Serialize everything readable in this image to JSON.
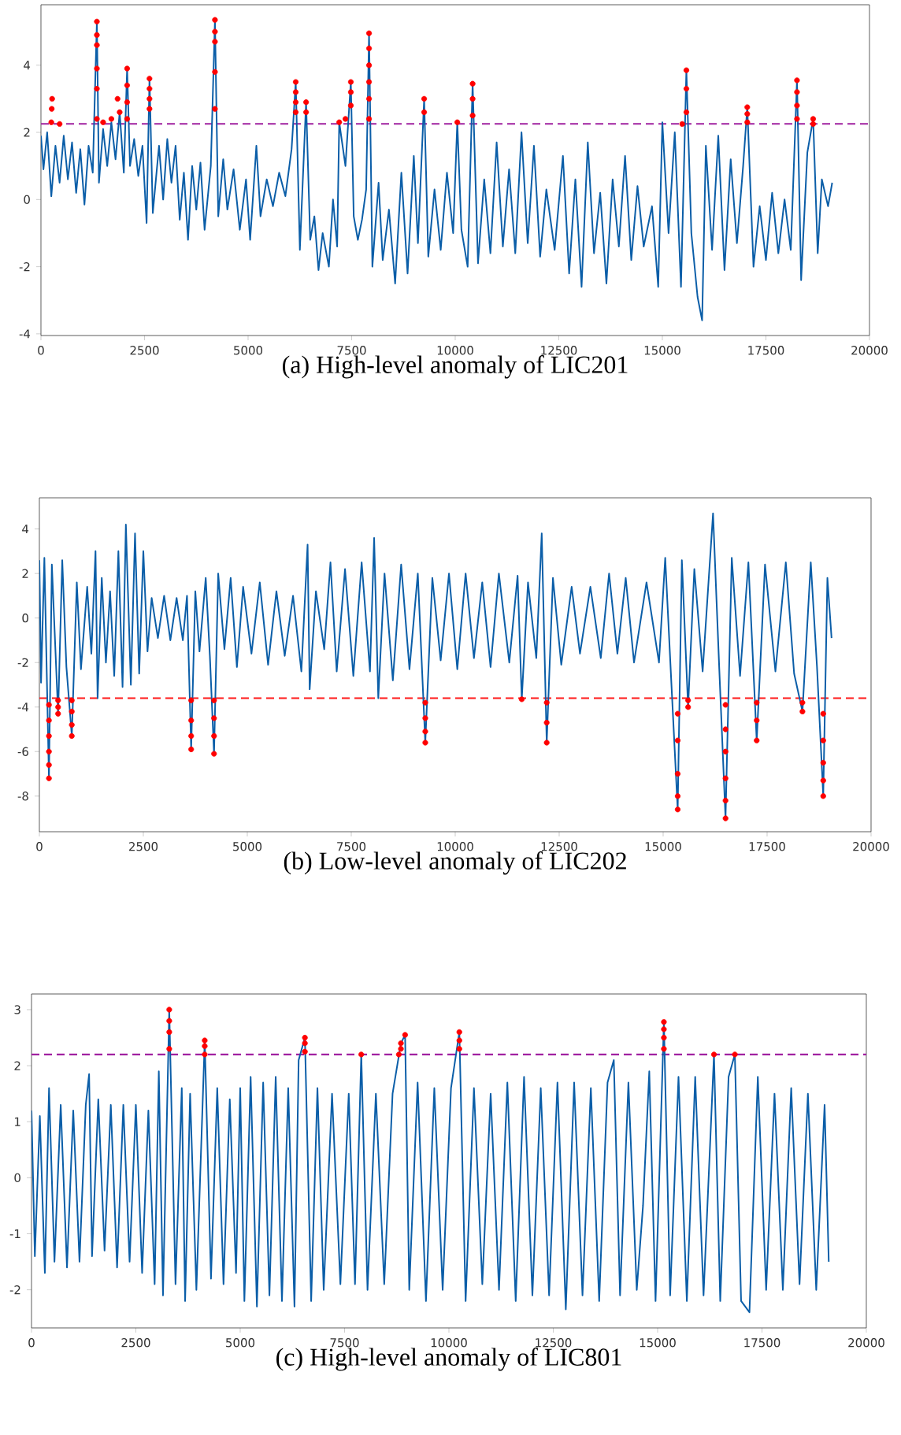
{
  "chart_data": [
    {
      "type": "line",
      "title": "(a)  High-level anomaly of LIC201",
      "xlim": [
        0,
        20000
      ],
      "ylim": [
        -4.05,
        5.8
      ],
      "xticks": [
        0,
        2500,
        5000,
        7500,
        10000,
        12500,
        15000,
        17500,
        20000
      ],
      "yticks": [
        -4,
        -2,
        0,
        2,
        4
      ],
      "series": [
        {
          "color": "#0b5ea8",
          "marker": "none",
          "x": [
            0,
            60,
            150,
            250,
            350,
            450,
            550,
            650,
            750,
            850,
            950,
            1050,
            1150,
            1250,
            1350,
            1400,
            1500,
            1600,
            1700,
            1800,
            1900,
            2000,
            2080,
            2150,
            2250,
            2350,
            2450,
            2550,
            2620,
            2700,
            2850,
            2950,
            3050,
            3150,
            3250,
            3350,
            3450,
            3550,
            3650,
            3750,
            3850,
            3950,
            4100,
            4200,
            4280,
            4400,
            4500,
            4650,
            4800,
            4950,
            5050,
            5200,
            5300,
            5450,
            5600,
            5750,
            5900,
            6050,
            6150,
            6250,
            6400,
            6500,
            6600,
            6700,
            6800,
            6950,
            7050,
            7150,
            7200,
            7350,
            7480,
            7550,
            7650,
            7750,
            7850,
            7920,
            8000,
            8150,
            8250,
            8400,
            8550,
            8700,
            8850,
            9000,
            9100,
            9250,
            9350,
            9500,
            9650,
            9800,
            9950,
            10050,
            10150,
            10300,
            10420,
            10550,
            10700,
            10850,
            11000,
            11150,
            11300,
            11450,
            11600,
            11750,
            11900,
            12050,
            12200,
            12400,
            12600,
            12750,
            12900,
            13050,
            13200,
            13350,
            13500,
            13650,
            13800,
            13950,
            14100,
            14250,
            14400,
            14550,
            14750,
            14900,
            15000,
            15150,
            15300,
            15450,
            15580,
            15700,
            15850,
            15960,
            16050,
            16200,
            16350,
            16500,
            16650,
            16800,
            16950,
            17050,
            17200,
            17350,
            17500,
            17650,
            17800,
            17950,
            18100,
            18250,
            18350,
            18500,
            18640,
            18750,
            18850,
            19000,
            19100
          ],
          "values": [
            1.9,
            0.9,
            2.0,
            0.1,
            1.6,
            0.5,
            1.9,
            0.6,
            1.7,
            0.2,
            1.5,
            -0.15,
            1.6,
            0.8,
            5.3,
            0.5,
            2.1,
            1.0,
            2.3,
            1.2,
            2.6,
            0.8,
            3.9,
            1.0,
            1.8,
            0.7,
            1.6,
            -0.7,
            3.6,
            -0.4,
            1.6,
            0.0,
            1.8,
            0.5,
            1.6,
            -0.6,
            0.8,
            -1.2,
            1.0,
            -0.3,
            1.1,
            -0.9,
            1.0,
            5.35,
            -0.5,
            1.2,
            -0.3,
            0.9,
            -0.9,
            0.6,
            -1.2,
            1.6,
            -0.5,
            0.6,
            -0.2,
            0.8,
            0.1,
            1.5,
            3.5,
            -1.5,
            2.9,
            -1.2,
            -0.5,
            -2.1,
            -1.0,
            -2.0,
            0.0,
            -1.4,
            2.3,
            1.0,
            3.5,
            -0.5,
            -1.2,
            -0.6,
            0.3,
            4.95,
            -2.0,
            0.5,
            -1.8,
            -0.3,
            -2.5,
            0.8,
            -2.2,
            1.3,
            -1.3,
            3.0,
            -1.7,
            0.3,
            -1.5,
            0.8,
            -1.0,
            2.3,
            -0.9,
            -2.0,
            3.45,
            -1.9,
            0.6,
            -1.6,
            1.7,
            -1.4,
            0.9,
            -1.6,
            2.0,
            -1.3,
            1.6,
            -1.7,
            0.3,
            -1.5,
            1.3,
            -2.2,
            0.6,
            -2.6,
            1.7,
            -1.6,
            0.2,
            -2.5,
            0.6,
            -1.4,
            1.3,
            -1.8,
            0.4,
            -1.4,
            -0.2,
            -2.6,
            2.3,
            -1.0,
            2.0,
            -2.6,
            3.85,
            -1.0,
            -2.9,
            -3.6,
            1.6,
            -1.5,
            1.9,
            -2.1,
            1.2,
            -1.3,
            1.0,
            2.75,
            -2.0,
            -0.2,
            -1.8,
            0.2,
            -1.6,
            0.0,
            -1.5,
            3.55,
            -2.4,
            1.4,
            2.4,
            -1.6,
            0.6,
            -0.2,
            0.5
          ]
        },
        {
          "type": "scatter",
          "color": "#ff0000",
          "marker": "circle",
          "x": [
            250,
            260,
            270,
            450,
            1350,
            1350,
            1350,
            1350,
            1350,
            1350,
            1500,
            1700,
            1900,
            1850,
            2080,
            2080,
            2080,
            2080,
            2620,
            2620,
            2620,
            2620,
            4200,
            4200,
            4200,
            4200,
            4200,
            6150,
            6150,
            6150,
            6150,
            6400,
            6400,
            7200,
            7350,
            7480,
            7480,
            7480,
            7920,
            7920,
            7920,
            7920,
            7920,
            7920,
            9250,
            9250,
            10050,
            10420,
            10420,
            10420,
            15480,
            15580,
            15580,
            15580,
            17050,
            17050,
            17050,
            18250,
            18250,
            18250,
            18250,
            18640,
            18640
          ],
          "values": [
            2.3,
            2.7,
            3.0,
            2.25,
            2.4,
            3.3,
            3.9,
            4.6,
            4.9,
            5.3,
            2.3,
            2.4,
            2.6,
            3.0,
            2.4,
            2.9,
            3.4,
            3.9,
            2.7,
            3.0,
            3.3,
            3.6,
            2.7,
            3.8,
            4.7,
            5.0,
            5.35,
            2.6,
            2.9,
            3.2,
            3.5,
            2.6,
            2.9,
            2.3,
            2.4,
            2.8,
            3.2,
            3.5,
            2.4,
            3.0,
            3.5,
            4.0,
            4.5,
            4.95,
            2.6,
            3.0,
            2.3,
            2.5,
            3.0,
            3.45,
            2.25,
            2.6,
            3.3,
            3.85,
            2.3,
            2.55,
            2.75,
            2.4,
            2.8,
            3.2,
            3.55,
            2.25,
            2.4
          ]
        }
      ],
      "ref_lines": [
        {
          "axis": "y",
          "value": 2.25,
          "color": "#a020a0",
          "line_style": "dashed"
        }
      ]
    },
    {
      "type": "line",
      "title": "(b)  Low-level anomaly of LIC202",
      "xlim": [
        0,
        20000
      ],
      "ylim": [
        -9.6,
        5.4
      ],
      "xticks": [
        0,
        2500,
        5000,
        7500,
        10000,
        12500,
        15000,
        17500,
        20000
      ],
      "yticks": [
        -8,
        -6,
        -4,
        -2,
        0,
        2,
        4
      ],
      "series": [
        {
          "color": "#0b5ea8",
          "marker": "none",
          "x": [
            0,
            40,
            120,
            230,
            300,
            450,
            550,
            650,
            780,
            900,
            1000,
            1150,
            1250,
            1350,
            1400,
            1500,
            1600,
            1700,
            1800,
            1900,
            2000,
            2080,
            2200,
            2300,
            2400,
            2500,
            2600,
            2700,
            2850,
            3000,
            3150,
            3300,
            3450,
            3550,
            3650,
            3750,
            3850,
            4000,
            4100,
            4200,
            4300,
            4450,
            4600,
            4750,
            4900,
            5100,
            5300,
            5500,
            5700,
            5900,
            6100,
            6300,
            6450,
            6500,
            6650,
            6850,
            7000,
            7150,
            7350,
            7550,
            7750,
            7950,
            8050,
            8150,
            8300,
            8500,
            8700,
            8900,
            9100,
            9280,
            9450,
            9650,
            9850,
            10050,
            10250,
            10450,
            10650,
            10850,
            11050,
            11300,
            11500,
            11600,
            11750,
            11950,
            12080,
            12200,
            12350,
            12550,
            12800,
            13000,
            13250,
            13500,
            13700,
            13900,
            14100,
            14300,
            14600,
            14900,
            15050,
            15200,
            15350,
            15450,
            15600,
            15750,
            15950,
            16200,
            16350,
            16500,
            16650,
            16850,
            17050,
            17250,
            17450,
            17700,
            17950,
            18150,
            18350,
            18550,
            18700,
            18850,
            18950,
            19050
          ],
          "values": [
            2.6,
            -2.9,
            2.7,
            -7.2,
            2.4,
            -4.3,
            2.6,
            -2.2,
            -5.3,
            1.6,
            -2.3,
            1.4,
            -1.6,
            3.0,
            -3.6,
            1.8,
            -2.0,
            1.2,
            -2.6,
            3.0,
            -3.1,
            4.2,
            -3.0,
            3.8,
            -2.5,
            3.0,
            -1.5,
            0.9,
            -0.9,
            1.0,
            -1.0,
            0.9,
            -1.0,
            1.0,
            -5.9,
            1.2,
            -1.5,
            1.8,
            -1.7,
            -6.1,
            2.0,
            -1.4,
            1.8,
            -2.2,
            1.4,
            -1.6,
            1.6,
            -2.1,
            1.2,
            -1.7,
            1.0,
            -2.4,
            3.3,
            -3.2,
            1.2,
            -1.4,
            2.5,
            -2.4,
            2.2,
            -2.6,
            2.5,
            -2.4,
            3.6,
            -3.6,
            2.0,
            -2.8,
            2.4,
            -2.3,
            2.0,
            -5.6,
            1.8,
            -1.9,
            2.0,
            -2.3,
            2.0,
            -1.8,
            1.6,
            -2.2,
            2.0,
            -2.0,
            1.9,
            -3.65,
            1.6,
            -1.8,
            3.8,
            -5.6,
            1.8,
            -2.1,
            1.4,
            -1.6,
            1.4,
            -1.8,
            2.0,
            -1.6,
            1.8,
            -2.0,
            1.6,
            -2.0,
            2.7,
            -3.0,
            -8.6,
            2.6,
            -4.0,
            2.2,
            -2.4,
            4.7,
            -2.3,
            -9.0,
            2.7,
            -2.6,
            2.5,
            -5.5,
            2.4,
            -2.4,
            2.5,
            -2.5,
            -4.2,
            2.5,
            -2.2,
            -8.0,
            1.8,
            -0.9
          ]
        },
        {
          "type": "scatter",
          "color": "#ff0000",
          "marker": "circle",
          "x": [
            230,
            230,
            230,
            230,
            230,
            230,
            450,
            450,
            450,
            780,
            780,
            780,
            780,
            3650,
            3650,
            3650,
            3650,
            4200,
            4200,
            4200,
            4200,
            9280,
            9280,
            9280,
            9280,
            11600,
            12200,
            12200,
            12200,
            15350,
            15350,
            15350,
            15350,
            15350,
            15600,
            15600,
            16500,
            16500,
            16500,
            16500,
            16500,
            16500,
            17250,
            17250,
            17250,
            18350,
            18350,
            18850,
            18850,
            18850,
            18850,
            18850
          ],
          "values": [
            -3.9,
            -4.6,
            -5.3,
            -6.0,
            -6.6,
            -7.2,
            -3.7,
            -4.0,
            -4.3,
            -3.7,
            -4.2,
            -4.8,
            -5.3,
            -3.7,
            -4.6,
            -5.3,
            -5.9,
            -3.7,
            -4.5,
            -5.3,
            -6.1,
            -3.8,
            -4.5,
            -5.1,
            -5.6,
            -3.65,
            -3.8,
            -4.7,
            -5.6,
            -4.3,
            -5.5,
            -7.0,
            -8.0,
            -8.6,
            -3.7,
            -4.0,
            -3.9,
            -5.0,
            -6.0,
            -7.2,
            -8.2,
            -9.0,
            -3.8,
            -4.6,
            -5.5,
            -3.8,
            -4.2,
            -4.3,
            -5.5,
            -6.5,
            -7.3,
            -8.0
          ]
        }
      ],
      "ref_lines": [
        {
          "axis": "y",
          "value": -3.6,
          "color": "#ff2020",
          "line_style": "dashed"
        }
      ]
    },
    {
      "type": "line",
      "title": "(c)  High-level anomaly of LIC801",
      "xlim": [
        0,
        20000
      ],
      "ylim": [
        -2.68,
        3.28
      ],
      "xticks": [
        0,
        2500,
        5000,
        7500,
        10000,
        12500,
        15000,
        17500,
        20000
      ],
      "yticks": [
        -2,
        -1,
        0,
        1,
        2,
        3
      ],
      "series": [
        {
          "color": "#0b5ea8",
          "marker": "none",
          "x": [
            0,
            80,
            200,
            320,
            420,
            550,
            700,
            850,
            1000,
            1150,
            1300,
            1380,
            1450,
            1600,
            1750,
            1900,
            2050,
            2200,
            2350,
            2500,
            2650,
            2800,
            2950,
            3050,
            3150,
            3300,
            3450,
            3600,
            3680,
            3800,
            3950,
            4150,
            4300,
            4450,
            4600,
            4750,
            4900,
            5000,
            5100,
            5250,
            5400,
            5550,
            5700,
            5850,
            6000,
            6150,
            6300,
            6400,
            6550,
            6700,
            6850,
            7000,
            7200,
            7400,
            7600,
            7750,
            7900,
            8050,
            8250,
            8450,
            8650,
            8850,
            8950,
            9050,
            9250,
            9450,
            9650,
            9850,
            10050,
            10250,
            10400,
            10600,
            10800,
            11000,
            11200,
            11400,
            11600,
            11800,
            12000,
            12200,
            12400,
            12600,
            12800,
            13000,
            13200,
            13400,
            13600,
            13800,
            13950,
            14100,
            14300,
            14500,
            14650,
            14800,
            14950,
            15150,
            15300,
            15500,
            15700,
            15900,
            16100,
            16350,
            16500,
            16700,
            16850,
            17000,
            17200,
            17400,
            17600,
            17800,
            18000,
            18200,
            18400,
            18600,
            18800,
            19000,
            19100
          ],
          "values": [
            1.2,
            -1.4,
            1.1,
            -1.7,
            1.6,
            -1.5,
            1.3,
            -1.6,
            1.2,
            -1.5,
            1.3,
            1.85,
            -1.4,
            1.4,
            -1.3,
            1.3,
            -1.6,
            1.3,
            -1.5,
            1.3,
            -1.7,
            1.2,
            -1.9,
            1.9,
            -2.1,
            3.0,
            -1.9,
            1.6,
            -2.2,
            1.5,
            -2.0,
            2.45,
            -1.8,
            1.6,
            -1.9,
            1.4,
            -1.7,
            1.6,
            -2.2,
            1.8,
            -2.3,
            1.7,
            -2.1,
            1.8,
            -2.2,
            1.6,
            -2.3,
            2.1,
            2.5,
            -2.2,
            1.6,
            -2.0,
            1.5,
            -1.9,
            1.5,
            -1.9,
            2.2,
            -2.0,
            1.5,
            -1.9,
            1.5,
            2.4,
            2.55,
            -2.0,
            1.7,
            -2.2,
            1.6,
            -2.0,
            1.6,
            2.6,
            -2.2,
            1.6,
            -1.9,
            1.5,
            -2.0,
            1.7,
            -2.2,
            1.8,
            -2.1,
            1.6,
            -2.1,
            1.7,
            -2.35,
            1.7,
            -2.1,
            1.6,
            -2.2,
            1.7,
            2.1,
            -2.1,
            1.7,
            -2.0,
            -0.5,
            1.9,
            -2.2,
            2.78,
            -2.1,
            1.8,
            -2.2,
            1.8,
            -2.1,
            2.2,
            -2.2,
            1.8,
            2.2,
            -2.2,
            -2.4,
            1.8,
            -2.0,
            1.5,
            -2.0,
            1.6,
            -1.9,
            1.5,
            -2.0,
            1.3,
            -1.5
          ]
        },
        {
          "type": "scatter",
          "color": "#ff0000",
          "marker": "circle",
          "x": [
            3300,
            3300,
            3300,
            3300,
            4150,
            4150,
            4150,
            6550,
            6550,
            6550,
            7900,
            8800,
            8850,
            8850,
            8950,
            10250,
            10250,
            10250,
            15150,
            15150,
            15150,
            15150,
            16350,
            16850
          ],
          "values": [
            2.3,
            2.6,
            2.8,
            3.0,
            2.2,
            2.35,
            2.45,
            2.25,
            2.4,
            2.5,
            2.2,
            2.2,
            2.3,
            2.4,
            2.55,
            2.3,
            2.45,
            2.6,
            2.3,
            2.5,
            2.65,
            2.78,
            2.2,
            2.2
          ]
        }
      ],
      "ref_lines": [
        {
          "axis": "y",
          "value": 2.2,
          "color": "#a020a0",
          "line_style": "dashed"
        }
      ]
    }
  ]
}
